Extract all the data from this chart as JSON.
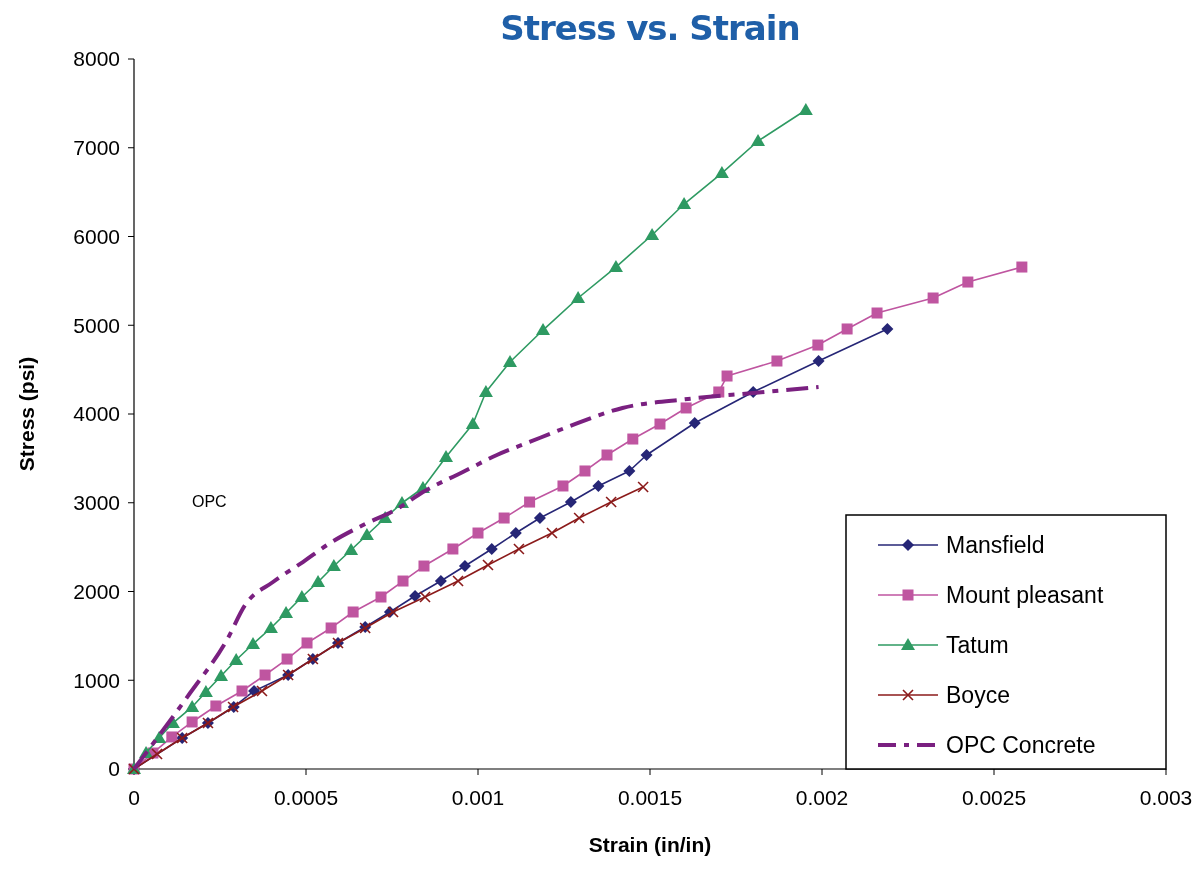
{
  "chart_data": {
    "type": "line",
    "title": "Stress vs. Strain",
    "xlabel": "Strain (in/in)",
    "ylabel": "Stress (psi)",
    "xlim": [
      0,
      0.003
    ],
    "xticks": [
      0,
      0.0005,
      0.001,
      0.0015,
      0.002,
      0.0025,
      0.003
    ],
    "ylim": [
      0,
      8000
    ],
    "yticks": [
      0,
      1000,
      2000,
      3000,
      4000,
      5000,
      6000,
      7000,
      8000
    ],
    "grid": false,
    "legend": "bottom right",
    "annotations": [
      "OPC"
    ],
    "series": [
      {
        "name": "Mansfield",
        "color": "#262676",
        "marker": "diamond",
        "x": [
          0,
          0.00014,
          0.000215,
          0.00029,
          0.000349,
          0.000448,
          0.00052,
          0.000593,
          0.000672,
          0.000744,
          0.000817,
          0.000892,
          0.000962,
          0.00104,
          0.00111,
          0.00118,
          0.00127,
          0.00135,
          0.00144,
          0.00149,
          0.00163,
          0.0018,
          0.00199,
          0.00219
        ],
        "values": [
          0,
          349,
          518,
          699,
          879,
          1059,
          1239,
          1420,
          1600,
          1769,
          1949,
          2118,
          2287,
          2479,
          2659,
          2828,
          3008,
          3189,
          3358,
          3538,
          3899,
          4248,
          4597,
          4958
        ]
      },
      {
        "name": "Mount pleasant",
        "color": "#bf55a0",
        "marker": "square",
        "x": [
          0,
          5.5e-05,
          0.00011,
          0.000169,
          0.000238,
          0.000314,
          0.000381,
          0.000445,
          0.000503,
          0.000573,
          0.000637,
          0.000718,
          0.000782,
          0.000843,
          0.000927,
          0.001,
          0.001076,
          0.00115,
          0.001247,
          0.001311,
          0.001375,
          0.00145,
          0.001529,
          0.001605,
          0.0017,
          0.001724,
          0.001869,
          0.001988,
          0.002073,
          0.00216,
          0.002323,
          0.002424,
          0.002581
        ],
        "values": [
          0,
          180,
          361,
          530,
          710,
          879,
          1059,
          1239,
          1420,
          1589,
          1769,
          1938,
          2118,
          2287,
          2479,
          2659,
          2828,
          3008,
          3189,
          3358,
          3538,
          3718,
          3887,
          4068,
          4248,
          4428,
          4597,
          4777,
          4958,
          5138,
          5307,
          5487,
          5656
        ]
      },
      {
        "name": "Tatum",
        "color": "#2e9a62",
        "marker": "triangle",
        "x": [
          0,
          3.5e-05,
          7.3e-05,
          0.000113,
          0.000169,
          0.000209,
          0.000253,
          0.000297,
          0.000346,
          0.000398,
          0.000442,
          0.000488,
          0.000535,
          0.000581,
          0.000631,
          0.000677,
          0.00073,
          0.000779,
          0.00084,
          0.000907,
          0.000985,
          0.001023,
          0.001093,
          0.001189,
          0.001291,
          0.001401,
          0.001506,
          0.001599,
          0.001709,
          0.001814,
          0.001953
        ],
        "values": [
          0,
          180,
          349,
          518,
          699,
          868,
          1048,
          1228,
          1408,
          1589,
          1758,
          1938,
          2107,
          2287,
          2468,
          2637,
          2828,
          2997,
          3166,
          3515,
          3887,
          4248,
          4586,
          4946,
          5307,
          5656,
          6017,
          6366,
          6715,
          7076,
          7425
        ]
      },
      {
        "name": "Boyce",
        "color": "#8b1a1a",
        "marker": "cross",
        "x": [
          0,
          6.7e-05,
          0.00014,
          0.000215,
          0.000288,
          0.000372,
          0.000448,
          0.00052,
          0.000593,
          0.000672,
          0.000753,
          0.000846,
          0.000942,
          0.001029,
          0.001119,
          0.001215,
          0.001294,
          0.001387,
          0.00148
        ],
        "values": [
          0,
          169,
          349,
          518,
          699,
          879,
          1059,
          1239,
          1420,
          1589,
          1769,
          1938,
          2118,
          2299,
          2479,
          2659,
          2828,
          3008,
          3178
        ]
      },
      {
        "name": "OPC Concrete",
        "color": "#7a2080",
        "marker": "none",
        "line_style": "dashed",
        "x": [
          0,
          0.000163,
          0.00027,
          0.000323,
          0.000404,
          0.000491,
          0.00057,
          0.000666,
          0.000765,
          0.00084,
          0.000956,
          0.001055,
          0.00115,
          0.00126,
          0.00142,
          0.00161,
          0.0018,
          0.00199
        ],
        "values": [
          0,
          856,
          1453,
          1848,
          2107,
          2332,
          2546,
          2749,
          2930,
          3121,
          3346,
          3538,
          3685,
          3853,
          4068,
          4169,
          4237,
          4304
        ]
      }
    ]
  }
}
